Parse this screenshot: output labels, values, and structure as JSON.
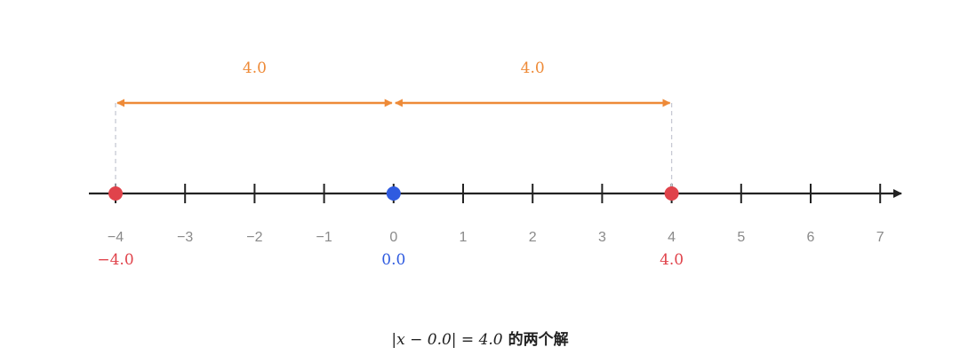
{
  "axis": {
    "min": -4,
    "max": 7,
    "tick_labels": [
      "−4",
      "−3",
      "−2",
      "−1",
      "0",
      "1",
      "2",
      "3",
      "4",
      "5",
      "6",
      "7"
    ]
  },
  "center": {
    "value": 0.0,
    "label": "0.0",
    "color": "#2f5be0"
  },
  "solutions": [
    {
      "value": -4.0,
      "label": "−4.0",
      "color": "#e0434b"
    },
    {
      "value": 4.0,
      "label": "4.0",
      "color": "#e0434b"
    }
  ],
  "distances": [
    {
      "from": -4.0,
      "to": 0.0,
      "label": "4.0"
    },
    {
      "from": 0.0,
      "to": 4.0,
      "label": "4.0"
    }
  ],
  "distance_color": "#ee8a37",
  "caption": {
    "equation": "|x − 0.0| = 4.0",
    "suffix": "的两个解"
  }
}
